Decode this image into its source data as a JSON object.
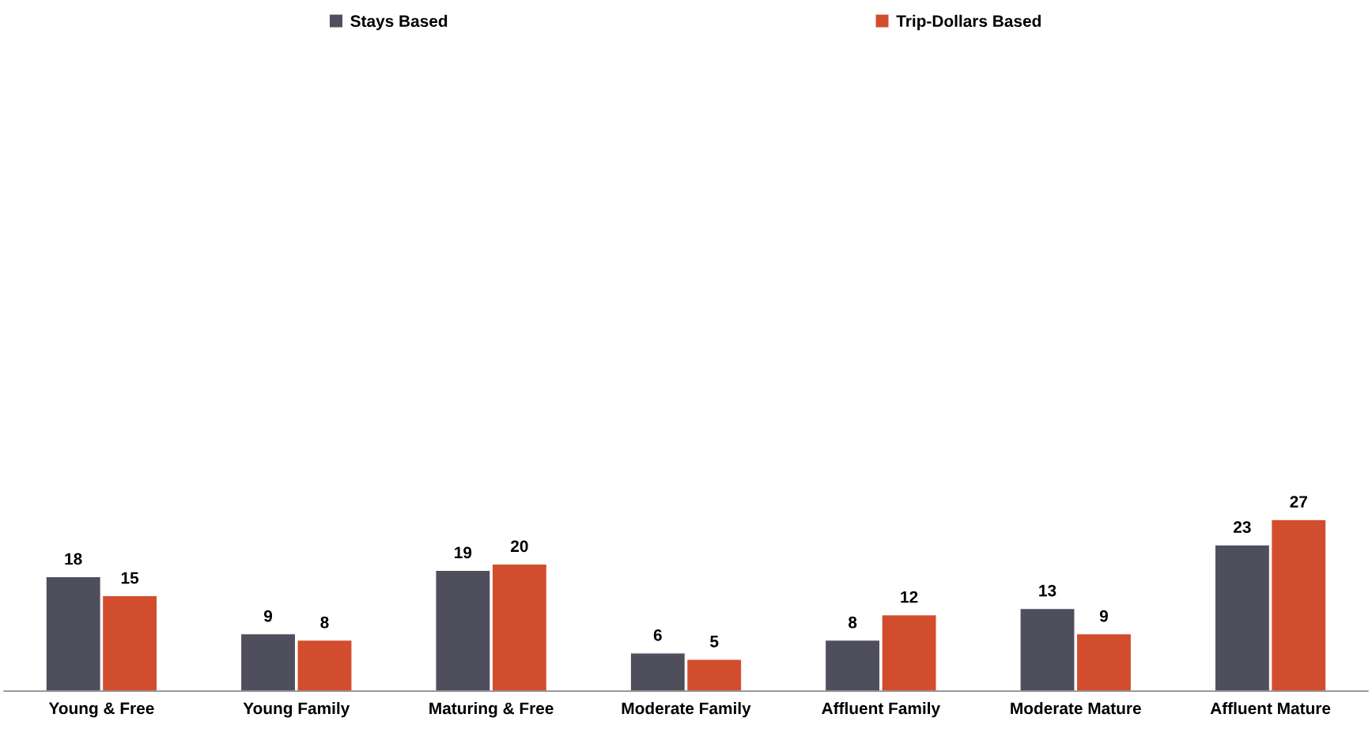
{
  "chart_data": {
    "type": "bar",
    "categories": [
      "Young & Free",
      "Young Family",
      "Maturing & Free",
      "Moderate Family",
      "Affluent Family",
      "Moderate Mature",
      "Affluent Mature"
    ],
    "series": [
      {
        "name": "Stays Based",
        "color": "#4f4e5c",
        "values": [
          18,
          9,
          19,
          6,
          8,
          13,
          23
        ]
      },
      {
        "name": "Trip-Dollars Based",
        "color": "#d24d2d",
        "values": [
          15,
          8,
          20,
          5,
          12,
          9,
          27
        ]
      }
    ],
    "data_labels": true,
    "legend": "top",
    "grid": false,
    "tick_labels": "x"
  }
}
